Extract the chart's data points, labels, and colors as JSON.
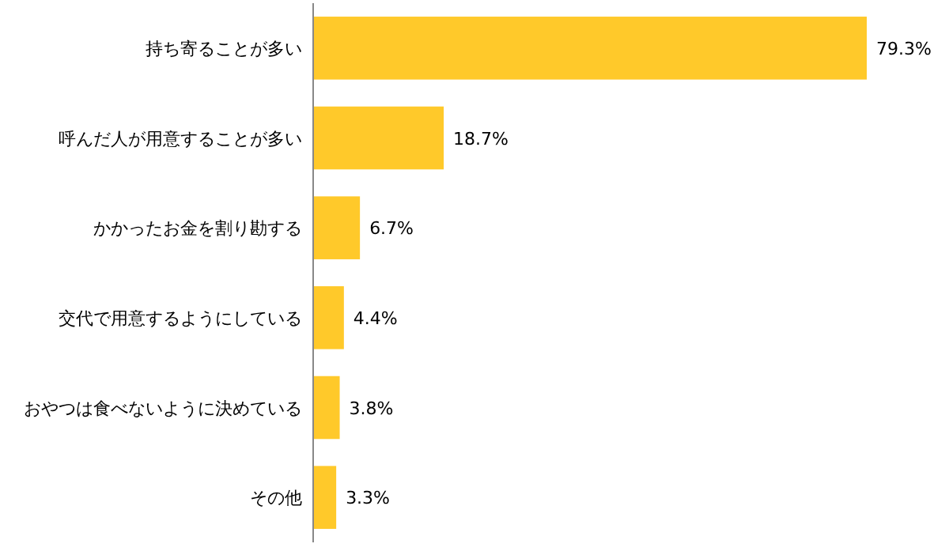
{
  "chart_data": {
    "type": "bar",
    "orientation": "horizontal",
    "categories": [
      "持ち寄ることが多い",
      "呼んだ人が用意することが多い",
      "かかったお金を割り勘する",
      "交代で用意するようにしている",
      "おやつは食べないように決めている",
      "その他"
    ],
    "values": [
      79.3,
      18.7,
      6.7,
      4.4,
      3.8,
      3.3
    ],
    "value_labels": [
      "79.3%",
      "18.7%",
      "6.7%",
      "4.4%",
      "3.8%",
      "3.3%"
    ],
    "color": "#ffc92a"
  }
}
